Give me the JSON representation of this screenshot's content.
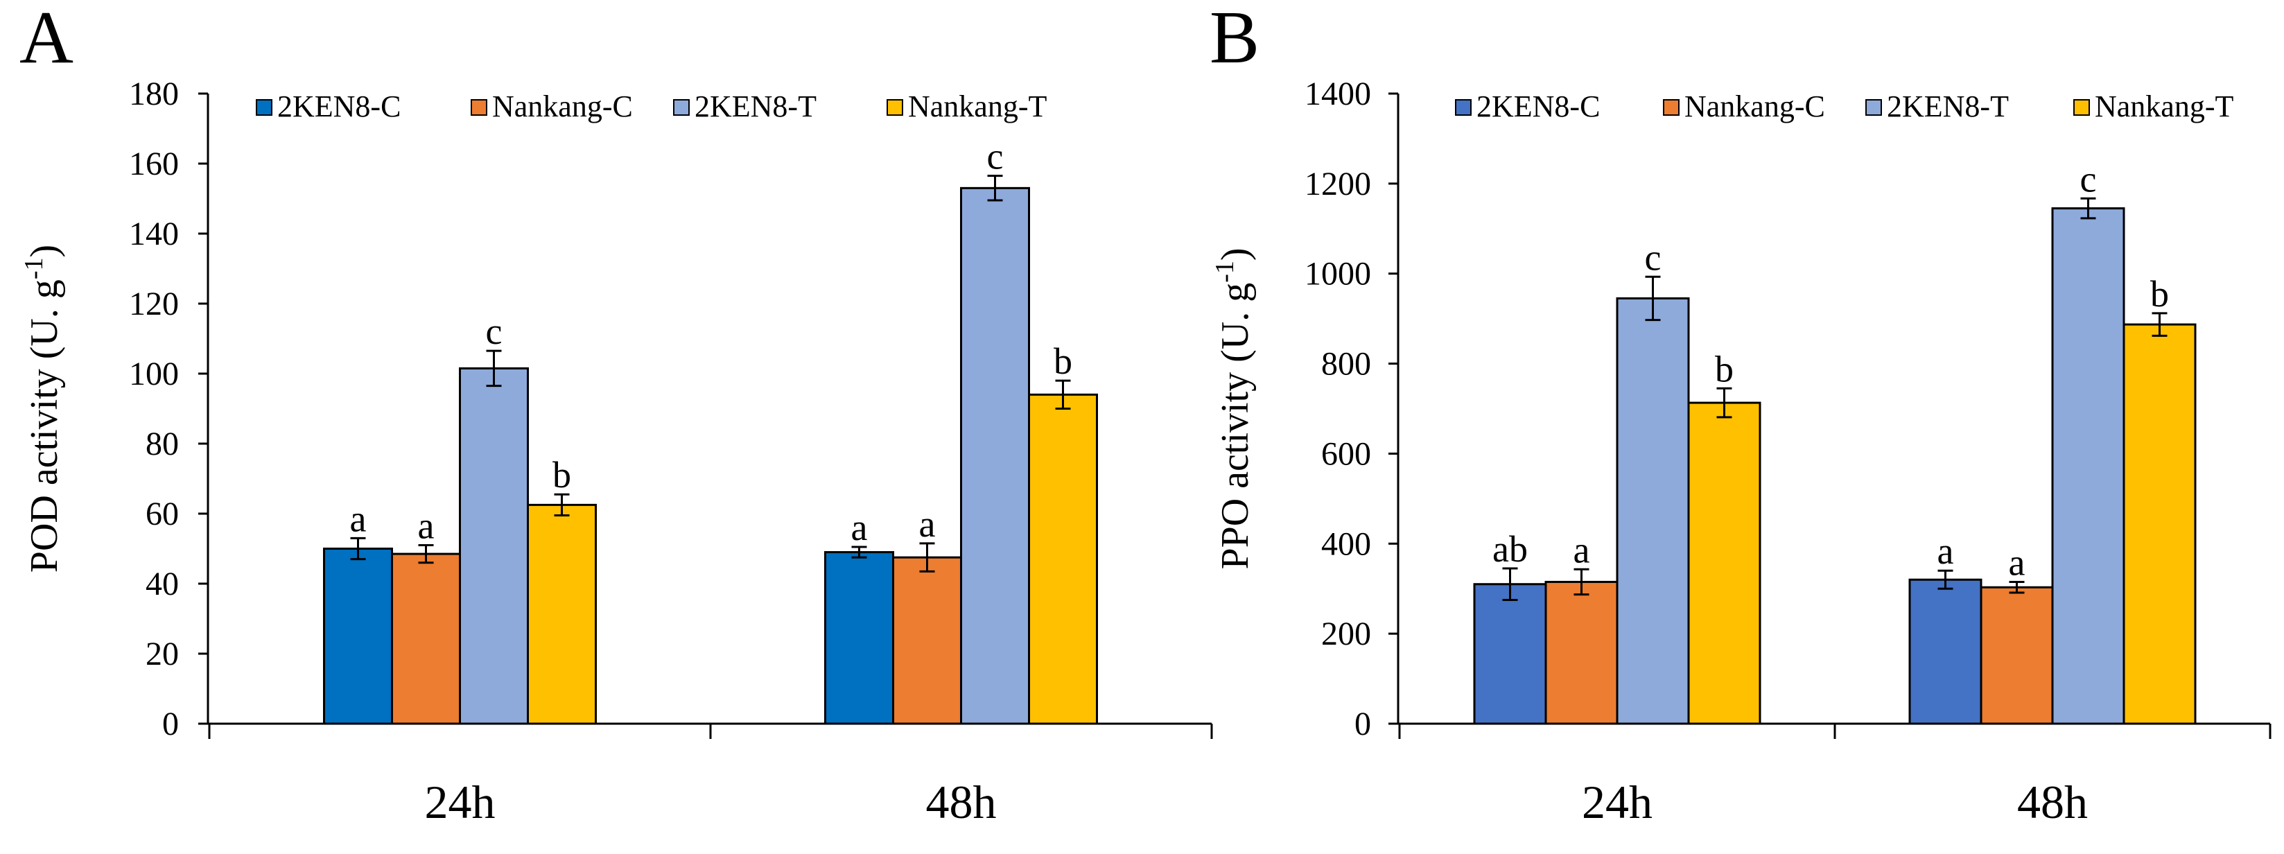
{
  "chart_data": [
    {
      "panel": "A",
      "type": "bar",
      "title": "",
      "xlabel": "",
      "ylabel": "POD activity (U. g",
      "ylabel_sup": "-1",
      "ylabel_close": ")",
      "ylim": [
        0,
        180
      ],
      "yticks": [
        0,
        20,
        40,
        60,
        80,
        100,
        120,
        140,
        160,
        180
      ],
      "categories": [
        "24h",
        "48h"
      ],
      "legend_position": "top",
      "series": [
        {
          "name": "2KEN8-C",
          "color": "#0070c0",
          "values": [
            50,
            49
          ],
          "errors": [
            3,
            1.5
          ],
          "labels": [
            "a",
            "a"
          ]
        },
        {
          "name": "Nankang-C",
          "color": "#ed7d31",
          "values": [
            48.5,
            47.5
          ],
          "errors": [
            2.5,
            4
          ],
          "labels": [
            "a",
            "a"
          ]
        },
        {
          "name": "2KEN8-T",
          "color": "#8eaadb",
          "values": [
            101.5,
            153
          ],
          "errors": [
            5,
            3.5
          ],
          "labels": [
            "c",
            "c"
          ]
        },
        {
          "name": "Nankang-T",
          "color": "#ffc000",
          "values": [
            62.5,
            94
          ],
          "errors": [
            3,
            4
          ],
          "labels": [
            "b",
            "b"
          ]
        }
      ]
    },
    {
      "panel": "B",
      "type": "bar",
      "title": "",
      "xlabel": "",
      "ylabel": "PPO activity (U. g",
      "ylabel_sup": "-1",
      "ylabel_close": ")",
      "ylim": [
        0,
        1400
      ],
      "yticks": [
        0,
        200,
        400,
        600,
        800,
        1000,
        1200,
        1400
      ],
      "categories": [
        "24h",
        "48h"
      ],
      "legend_position": "top",
      "series": [
        {
          "name": "2KEN8-C",
          "color": "#4472c4",
          "values": [
            310,
            320
          ],
          "errors": [
            35,
            20
          ],
          "labels": [
            "ab",
            "a"
          ]
        },
        {
          "name": "Nankang-C",
          "color": "#ed7d31",
          "values": [
            315,
            303
          ],
          "errors": [
            28,
            12
          ],
          "labels": [
            "a",
            "a"
          ]
        },
        {
          "name": "2KEN8-T",
          "color": "#8eaadb",
          "values": [
            945,
            1145
          ],
          "errors": [
            48,
            22
          ],
          "labels": [
            "c",
            "c"
          ]
        },
        {
          "name": "Nankang-T",
          "color": "#ffc000",
          "values": [
            713,
            887
          ],
          "errors": [
            32,
            25
          ],
          "labels": [
            "b",
            "b"
          ]
        }
      ]
    }
  ]
}
